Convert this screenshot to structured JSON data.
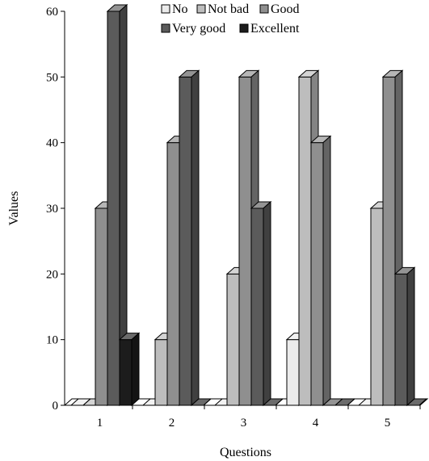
{
  "chart_data": {
    "type": "bar",
    "style": "3d-clustered-columns",
    "title": "",
    "xlabel": "Questions",
    "ylabel": "Values",
    "ylim": [
      0,
      60
    ],
    "yticks": [
      "0",
      "10",
      "20",
      "30",
      "40",
      "50",
      "60"
    ],
    "categories": [
      "1",
      "2",
      "3",
      "4",
      "5"
    ],
    "legend_position": "top-right",
    "grid": false,
    "series": [
      {
        "name": "No",
        "color": "#ebebeb",
        "values": [
          0,
          0,
          0,
          10,
          0
        ]
      },
      {
        "name": "Not bad",
        "color": "#bdbdbd",
        "values": [
          0,
          10,
          20,
          50,
          30
        ]
      },
      {
        "name": "Good",
        "color": "#8f8f8f",
        "values": [
          30,
          40,
          50,
          40,
          50
        ]
      },
      {
        "name": "Very good",
        "color": "#5b5b5b",
        "values": [
          60,
          50,
          30,
          0,
          20
        ]
      },
      {
        "name": "Excellent",
        "color": "#1c1c1c",
        "values": [
          10,
          0,
          0,
          0,
          0
        ]
      }
    ]
  }
}
